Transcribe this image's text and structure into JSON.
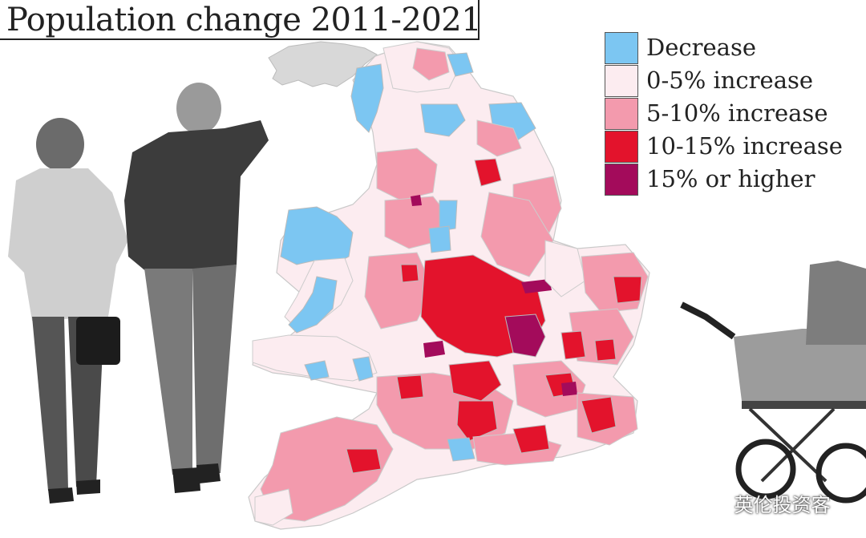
{
  "title": "Population change 2011-2021",
  "legend": [
    {
      "label": "Decrease",
      "color": "#7cc6f2"
    },
    {
      "label": "0-5% increase",
      "color": "#fcecf0"
    },
    {
      "label": "5-10% increase",
      "color": "#f39aad"
    },
    {
      "label": "10-15% increase",
      "color": "#e3132c"
    },
    {
      "label": "15% or higher",
      "color": "#a30b5b"
    }
  ],
  "watermark": "英伦投资客",
  "icons": {
    "watermark_icon": "wechat-icon",
    "people_photo": "elderly-couple-photo",
    "pram_photo": "baby-pram-photo"
  }
}
